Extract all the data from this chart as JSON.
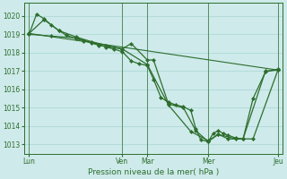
{
  "background_color": "#ceeaea",
  "grid_color": "#a8d4d4",
  "line_color": "#2d6e2d",
  "marker_color": "#2d6e2d",
  "xlabel": "Pression niveau de la mer( hPa )",
  "ylim": [
    1012.5,
    1020.7
  ],
  "yticks": [
    1013,
    1014,
    1015,
    1016,
    1017,
    1018,
    1019,
    1020
  ],
  "xtick_labels": [
    "Lun",
    "Ven",
    "Mar",
    "Mer",
    "Jeu"
  ],
  "xtick_positions": [
    0,
    0.375,
    0.475,
    0.72,
    1.0
  ],
  "vline_positions": [
    0.0,
    0.375,
    0.475,
    0.72,
    1.0
  ],
  "series_straight": {
    "x": [
      0.0,
      1.0
    ],
    "y": [
      1019.05,
      1017.05
    ]
  },
  "series1": {
    "x": [
      0.0,
      0.03,
      0.06,
      0.09,
      0.12,
      0.15,
      0.19,
      0.22,
      0.25,
      0.28,
      0.31,
      0.34,
      0.375,
      0.41,
      0.44,
      0.475,
      0.5,
      0.53,
      0.56,
      0.59,
      0.62,
      0.65,
      0.67,
      0.69,
      0.72,
      0.74,
      0.76,
      0.78,
      0.8,
      0.83,
      0.86,
      0.9,
      0.95,
      1.0
    ],
    "y": [
      1019.0,
      1020.1,
      1019.85,
      1019.5,
      1019.2,
      1018.95,
      1018.75,
      1018.65,
      1018.55,
      1018.45,
      1018.3,
      1018.2,
      1018.05,
      1017.55,
      1017.4,
      1017.3,
      1016.55,
      1015.55,
      1015.3,
      1015.15,
      1015.05,
      1014.85,
      1013.85,
      1013.25,
      1013.15,
      1013.6,
      1013.75,
      1013.6,
      1013.5,
      1013.35,
      1013.3,
      1015.5,
      1016.95,
      1017.1
    ]
  },
  "series2": {
    "x": [
      0.0,
      0.06,
      0.12,
      0.19,
      0.25,
      0.31,
      0.375,
      0.41,
      0.475,
      0.5,
      0.56,
      0.62,
      0.67,
      0.72,
      0.76,
      0.8,
      0.86,
      0.95,
      1.0
    ],
    "y": [
      1019.05,
      1019.8,
      1019.2,
      1018.85,
      1018.6,
      1018.4,
      1018.2,
      1018.5,
      1017.6,
      1017.6,
      1015.2,
      1015.0,
      1013.75,
      1013.15,
      1013.55,
      1013.3,
      1013.3,
      1017.0,
      1017.05
    ]
  },
  "series3": {
    "x": [
      0.0,
      0.09,
      0.19,
      0.28,
      0.375,
      0.475,
      0.56,
      0.65,
      0.72,
      0.76,
      0.83,
      0.9,
      1.0
    ],
    "y": [
      1019.0,
      1018.9,
      1018.8,
      1018.4,
      1018.2,
      1017.35,
      1015.15,
      1013.7,
      1013.2,
      1013.55,
      1013.3,
      1013.3,
      1017.05
    ]
  }
}
